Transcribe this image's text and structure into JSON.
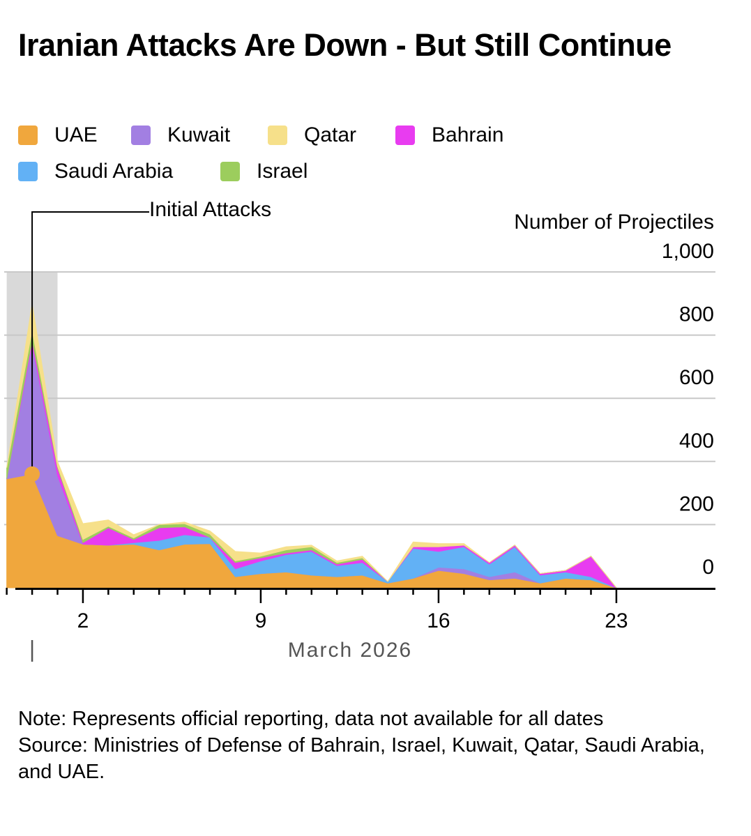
{
  "title": "Iranian Attacks Are Down - But Still Continue",
  "legend": [
    {
      "name": "UAE",
      "color": "#f0a73d"
    },
    {
      "name": "Kuwait",
      "color": "#a27fe2"
    },
    {
      "name": "Qatar",
      "color": "#f6e08a"
    },
    {
      "name": "Bahrain",
      "color": "#e83cf0"
    },
    {
      "name": "Saudi Arabia",
      "color": "#62b1f5"
    },
    {
      "name": "Israel",
      "color": "#9ccd5d"
    }
  ],
  "annotation": "Initial Attacks",
  "y_axis_title": "Number of Projectiles",
  "x_axis_title": "March 2026",
  "note": "Note: Represents official reporting, data not available for all dates",
  "source": "Source: Ministries of Defense of Bahrain, Israel, Kuwait, Qatar, Saudi Arabia, and UAE.",
  "chart_data": {
    "type": "area",
    "stacked": true,
    "title": "Iranian Attacks Are Down - But Still Continue",
    "xlabel": "March 2026",
    "ylabel": "Number of Projectiles",
    "x": [
      -1,
      0,
      1,
      2,
      3,
      4,
      5,
      6,
      7,
      8,
      9,
      10,
      11,
      12,
      13,
      14,
      15,
      16,
      17,
      18,
      19,
      20,
      21,
      22,
      23
    ],
    "xlim": [
      -1.1,
      26.9
    ],
    "ylim": [
      0,
      1000
    ],
    "x_ticks": [
      2,
      9,
      16,
      23
    ],
    "x_minor_ticks": [
      -1,
      0,
      1,
      2,
      3,
      4,
      5,
      6,
      7,
      8,
      9,
      10,
      11,
      12,
      13,
      14,
      15,
      16,
      17,
      18,
      19,
      20,
      21,
      22,
      23
    ],
    "y_ticks": [
      0,
      200,
      400,
      600,
      800,
      1000
    ],
    "y_tick_labels": [
      "0",
      "200",
      "400",
      "600",
      "800",
      "1,000"
    ],
    "highlight_range": [
      -1,
      1
    ],
    "annotation": {
      "text": "Initial Attacks",
      "x": 0,
      "y": 360
    },
    "series": [
      {
        "name": "UAE",
        "color": "#f0a73d",
        "values": [
          345,
          360,
          165,
          138,
          135,
          138,
          120,
          138,
          140,
          35,
          45,
          50,
          40,
          35,
          40,
          15,
          30,
          55,
          45,
          25,
          30,
          15,
          30,
          25,
          0
        ]
      },
      {
        "name": "Kuwait",
        "color": "#a27fe2",
        "values": [
          0,
          410,
          190,
          0,
          0,
          0,
          0,
          0,
          0,
          0,
          0,
          0,
          0,
          0,
          0,
          0,
          0,
          10,
          15,
          10,
          20,
          0,
          0,
          0,
          0
        ]
      },
      {
        "name": "Saudi Arabia",
        "color": "#62b1f5",
        "values": [
          0,
          0,
          0,
          0,
          0,
          5,
          30,
          30,
          20,
          25,
          40,
          55,
          75,
          35,
          40,
          5,
          95,
          50,
          70,
          40,
          80,
          25,
          20,
          10,
          0
        ]
      },
      {
        "name": "Bahrain",
        "color": "#e83cf0",
        "values": [
          0,
          15,
          25,
          5,
          55,
          10,
          40,
          25,
          0,
          20,
          10,
          5,
          5,
          5,
          10,
          0,
          5,
          15,
          5,
          5,
          5,
          5,
          5,
          65,
          0
        ]
      },
      {
        "name": "Israel",
        "color": "#9ccd5d",
        "values": [
          35,
          30,
          5,
          10,
          5,
          5,
          10,
          10,
          10,
          5,
          5,
          10,
          10,
          5,
          5,
          0,
          0,
          0,
          0,
          0,
          0,
          0,
          0,
          0,
          0
        ]
      },
      {
        "name": "Qatar",
        "color": "#f6e08a",
        "values": [
          0,
          85,
          15,
          50,
          20,
          10,
          0,
          5,
          10,
          30,
          10,
          10,
          5,
          5,
          5,
          0,
          15,
          10,
          5,
          0,
          0,
          0,
          0,
          0,
          0
        ]
      }
    ]
  }
}
